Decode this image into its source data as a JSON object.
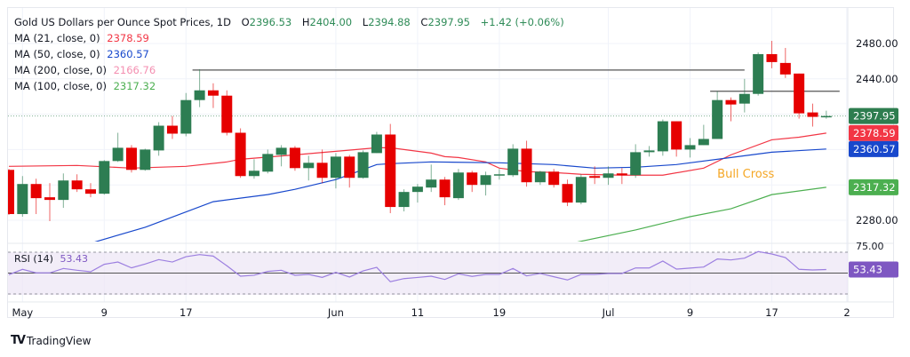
{
  "header": {
    "symbol_title": "Gold US Dollars per Ounce Spot Prices, 1D",
    "o_label": "O",
    "o": "2396.53",
    "h_label": "H",
    "h": "2404.00",
    "l_label": "L",
    "l": "2394.88",
    "c_label": "C",
    "c": "2397.95",
    "change": "+1.42 (+0.06%)"
  },
  "indicators": [
    {
      "label": "MA (21, close, 0)",
      "value": "2378.59",
      "color": "#f23645"
    },
    {
      "label": "MA (50, close, 0)",
      "value": "2360.57",
      "color": "#1848cc"
    },
    {
      "label": "MA (200, close, 0)",
      "value": "2166.76",
      "color": "#f48fb1"
    },
    {
      "label": "MA (100, close, 0)",
      "value": "2317.32",
      "color": "#4caf50"
    }
  ],
  "rsi": {
    "label": "RSI (14)",
    "value": "53.43",
    "color": "#7e57c2"
  },
  "branding": {
    "name": "TradingView"
  },
  "colors": {
    "up": "#2d7d52",
    "down": "#e60000",
    "last_price": "#2e7d4f",
    "annotation": "#f5a623"
  },
  "chart_data": {
    "type": "candlestick",
    "dates": [
      "Apr 30",
      "May 1",
      "May 2",
      "May 3",
      "May 6",
      "May 7",
      "May 8",
      "May 9",
      "May 10",
      "May 13",
      "May 14",
      "May 15",
      "May 16",
      "May 17",
      "May 20",
      "May 21",
      "May 22",
      "May 23",
      "May 24",
      "May 27",
      "May 28",
      "May 29",
      "May 30",
      "May 31",
      "Jun 3",
      "Jun 4",
      "Jun 5",
      "Jun 6",
      "Jun 7",
      "Jun 10",
      "Jun 11",
      "Jun 12",
      "Jun 13",
      "Jun 14",
      "Jun 17",
      "Jun 18",
      "Jun 19",
      "Jun 20",
      "Jun 21",
      "Jun 24",
      "Jun 25",
      "Jun 26",
      "Jun 27",
      "Jun 28",
      "Jul 1",
      "Jul 2",
      "Jul 3",
      "Jul 4",
      "Jul 5",
      "Jul 8",
      "Jul 9",
      "Jul 10",
      "Jul 11",
      "Jul 12",
      "Jul 15",
      "Jul 16",
      "Jul 17",
      "Jul 18",
      "Jul 19",
      "Jul 22",
      "Jul 23"
    ],
    "ohlc": [
      [
        2337,
        2338,
        2286,
        2287
      ],
      [
        2287,
        2330,
        2284,
        2321
      ],
      [
        2321,
        2327,
        2287,
        2305
      ],
      [
        2306,
        2322,
        2279,
        2303
      ],
      [
        2303,
        2333,
        2294,
        2325
      ],
      [
        2325,
        2332,
        2312,
        2315
      ],
      [
        2315,
        2322,
        2306,
        2310
      ],
      [
        2310,
        2348,
        2309,
        2347
      ],
      [
        2347,
        2379,
        2346,
        2362
      ],
      [
        2362,
        2365,
        2334,
        2337
      ],
      [
        2337,
        2361,
        2336,
        2360
      ],
      [
        2359,
        2391,
        2353,
        2387
      ],
      [
        2387,
        2398,
        2372,
        2378
      ],
      [
        2378,
        2424,
        2375,
        2416
      ],
      [
        2416,
        2451,
        2408,
        2427
      ],
      [
        2427,
        2435,
        2407,
        2421
      ],
      [
        2421,
        2427,
        2376,
        2379
      ],
      [
        2379,
        2384,
        2328,
        2330
      ],
      [
        2330,
        2349,
        2327,
        2336
      ],
      [
        2335,
        2360,
        2333,
        2355
      ],
      [
        2354,
        2365,
        2341,
        2362
      ],
      [
        2362,
        2364,
        2336,
        2339
      ],
      [
        2339,
        2353,
        2325,
        2345
      ],
      [
        2345,
        2360,
        2322,
        2328
      ],
      [
        2328,
        2356,
        2316,
        2352
      ],
      [
        2352,
        2354,
        2317,
        2328
      ],
      [
        2328,
        2359,
        2327,
        2357
      ],
      [
        2356,
        2380,
        2356,
        2377
      ],
      [
        2377,
        2389,
        2288,
        2295
      ],
      [
        2295,
        2315,
        2290,
        2312
      ],
      [
        2312,
        2321,
        2300,
        2318
      ],
      [
        2317,
        2343,
        2312,
        2326
      ],
      [
        2326,
        2329,
        2297,
        2306
      ],
      [
        2305,
        2338,
        2303,
        2334
      ],
      [
        2334,
        2336,
        2312,
        2320
      ],
      [
        2320,
        2335,
        2308,
        2331
      ],
      [
        2331,
        2338,
        2326,
        2332
      ],
      [
        2331,
        2366,
        2329,
        2361
      ],
      [
        2361,
        2370,
        2318,
        2323
      ],
      [
        2323,
        2336,
        2320,
        2335
      ],
      [
        2335,
        2338,
        2317,
        2320
      ],
      [
        2321,
        2326,
        2296,
        2300
      ],
      [
        2300,
        2332,
        2298,
        2329
      ],
      [
        2330,
        2341,
        2321,
        2328
      ],
      [
        2328,
        2341,
        2320,
        2333
      ],
      [
        2333,
        2339,
        2321,
        2331
      ],
      [
        2331,
        2366,
        2328,
        2357
      ],
      [
        2357,
        2364,
        2352,
        2359
      ],
      [
        2358,
        2394,
        2353,
        2392
      ],
      [
        2392,
        2392,
        2352,
        2360
      ],
      [
        2360,
        2373,
        2351,
        2365
      ],
      [
        2365,
        2388,
        2365,
        2372
      ],
      [
        2372,
        2426,
        2372,
        2416
      ],
      [
        2416,
        2419,
        2392,
        2411
      ],
      [
        2412,
        2440,
        2402,
        2423
      ],
      [
        2423,
        2470,
        2421,
        2468
      ],
      [
        2468,
        2483,
        2452,
        2459
      ],
      [
        2458,
        2475,
        2441,
        2445
      ],
      [
        2446,
        2446,
        2395,
        2401
      ],
      [
        2402,
        2412,
        2386,
        2397
      ],
      [
        2396.53,
        2404.0,
        2394.88,
        2397.95
      ]
    ],
    "moving_averages": [
      {
        "name": "MA (21, close, 0)",
        "color": "#f23645",
        "points": [
          [
            "Apr 30",
            2341
          ],
          [
            "May 7",
            2342
          ],
          [
            "May 13",
            2339
          ],
          [
            "May 17",
            2341
          ],
          [
            "May 22",
            2346
          ],
          [
            "May 23",
            2349
          ],
          [
            "May 29",
            2354
          ],
          [
            "Jun 3",
            2358
          ],
          [
            "Jun 6",
            2362
          ],
          [
            "Jun 7",
            2362
          ],
          [
            "Jun 12",
            2356
          ],
          [
            "Jun 13",
            2352
          ],
          [
            "Jun 14",
            2351
          ],
          [
            "Jun 18",
            2346
          ],
          [
            "Jun 19",
            2339
          ],
          [
            "Jun 21",
            2335
          ],
          [
            "Jun 25",
            2334
          ],
          [
            "Jun 27",
            2332
          ],
          [
            "Jul 2",
            2331
          ],
          [
            "Jul 5",
            2331
          ],
          [
            "Jul 10",
            2339
          ],
          [
            "Jul 12",
            2354
          ],
          [
            "Jul 17",
            2371
          ],
          [
            "Jul 19",
            2374
          ],
          [
            "Jul 23",
            2378.59
          ]
        ]
      },
      {
        "name": "MA (50, close, 0)",
        "color": "#1848cc",
        "points": [
          [
            "May 8",
            2254
          ],
          [
            "May 14",
            2272
          ],
          [
            "May 21",
            2301
          ],
          [
            "May 27",
            2309
          ],
          [
            "May 29",
            2315
          ],
          [
            "Jun 3",
            2326
          ],
          [
            "Jun 6",
            2343
          ],
          [
            "Jun 7",
            2344
          ],
          [
            "Jun 12",
            2346
          ],
          [
            "Jun 19",
            2345
          ],
          [
            "Jun 25",
            2343
          ],
          [
            "Jun 28",
            2339
          ],
          [
            "Jul 3",
            2340
          ],
          [
            "Jul 8",
            2343
          ],
          [
            "Jul 12",
            2351
          ],
          [
            "Jul 17",
            2357
          ],
          [
            "Jul 23",
            2360.57
          ]
        ]
      },
      {
        "name": "MA (100, close, 0)",
        "color": "#4caf50",
        "points": [
          [
            "Jun 26",
            2253
          ],
          [
            "Jul 3",
            2269
          ],
          [
            "Jul 9",
            2284
          ],
          [
            "Jul 12",
            2293
          ],
          [
            "Jul 17",
            2309
          ],
          [
            "Jul 23",
            2317.32
          ]
        ]
      }
    ],
    "rsi_values": [
      48.5,
      53.6,
      50.2,
      50.2,
      54.4,
      52.7,
      51.3,
      58.4,
      60.6,
      55.0,
      58.7,
      62.9,
      60.6,
      65.7,
      67.7,
      66.3,
      57.0,
      47.0,
      47.9,
      51.6,
      52.7,
      47.9,
      48.7,
      45.9,
      50.7,
      46.2,
      52.1,
      55.5,
      41.7,
      44.7,
      45.8,
      47.0,
      43.9,
      49.3,
      46.8,
      48.7,
      48.7,
      54.4,
      47.3,
      49.6,
      46.5,
      43.4,
      48.7,
      48.7,
      49.6,
      49.6,
      54.9,
      54.9,
      61.5,
      53.8,
      54.8,
      55.8,
      63.5,
      62.6,
      64.3,
      70.6,
      68.3,
      64.9,
      53.6,
      53.0,
      53.43
    ],
    "rsi_levels": [
      70,
      50,
      30
    ],
    "horizontal_lines": [
      {
        "price": 2450,
        "start": "May 20",
        "end": "Jul 15"
      },
      {
        "price": 2426,
        "start": "Jul 11",
        "end": "Jul 23"
      }
    ],
    "annotations": [
      {
        "text": "Bull Cross",
        "date": "Jul 11",
        "price": 2328
      }
    ],
    "y_ticks": [
      {
        "value": 2480,
        "label": "2480.00"
      },
      {
        "value": 2440,
        "label": "2440.00"
      },
      {
        "value": 2280,
        "label": "2280.00"
      }
    ],
    "rsi_tick": {
      "value": 75,
      "label": "75.00"
    },
    "price_labels": [
      {
        "value": 2397.95,
        "label": "2397.95",
        "color": "#2e7d4f"
      },
      {
        "value": 2378.59,
        "label": "2378.59",
        "color": "#f23645"
      },
      {
        "value": 2360.57,
        "label": "2360.57",
        "color": "#1848cc"
      },
      {
        "value": 2317.32,
        "label": "2317.32",
        "color": "#4caf50"
      }
    ],
    "x_ticks": [
      {
        "date": "May 1",
        "label": "May"
      },
      {
        "date": "May 9",
        "label": "9"
      },
      {
        "date": "May 17",
        "label": "17"
      },
      {
        "date": "Jun 3",
        "label": "Jun"
      },
      {
        "date": "Jun 11",
        "label": "11"
      },
      {
        "date": "Jun 19",
        "label": "19"
      },
      {
        "date": "Jul 1",
        "label": "Jul"
      },
      {
        "date": "Jul 9",
        "label": "9"
      },
      {
        "date": "Jul 17",
        "label": "17"
      },
      {
        "date": "",
        "label": "2"
      }
    ]
  }
}
